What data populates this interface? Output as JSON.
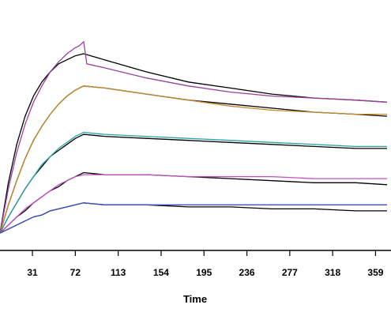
{
  "chart_data": {
    "type": "line",
    "title": "",
    "xlabel": "Time",
    "ylabel": "",
    "x_ticks": [
      31,
      72,
      113,
      154,
      195,
      236,
      277,
      318,
      359
    ],
    "xlim": [
      0,
      370
    ],
    "ylim": [
      0,
      100
    ],
    "grid": false,
    "legend": "none",
    "association_end_x": 80,
    "series": [
      {
        "color": "#9b3f9f",
        "fit_color": "#000000",
        "points": [
          [
            0,
            0
          ],
          [
            8,
            22
          ],
          [
            16,
            40
          ],
          [
            24,
            54
          ],
          [
            32,
            65
          ],
          [
            40,
            73
          ],
          [
            48,
            80
          ],
          [
            56,
            85
          ],
          [
            64,
            89
          ],
          [
            72,
            92
          ],
          [
            76,
            93
          ],
          [
            80,
            95
          ],
          [
            83,
            84
          ],
          [
            100,
            82
          ],
          [
            140,
            77
          ],
          [
            180,
            73
          ],
          [
            220,
            70
          ],
          [
            260,
            68
          ],
          [
            300,
            67
          ],
          [
            340,
            66
          ],
          [
            370,
            65
          ]
        ],
        "fit": [
          [
            0,
            0
          ],
          [
            8,
            25
          ],
          [
            16,
            44
          ],
          [
            24,
            58
          ],
          [
            32,
            68
          ],
          [
            40,
            75
          ],
          [
            48,
            80
          ],
          [
            56,
            84
          ],
          [
            64,
            86
          ],
          [
            72,
            88
          ],
          [
            80,
            89
          ],
          [
            100,
            86
          ],
          [
            140,
            80
          ],
          [
            180,
            75
          ],
          [
            220,
            72
          ],
          [
            260,
            69
          ],
          [
            300,
            67
          ],
          [
            340,
            66
          ],
          [
            370,
            65
          ]
        ]
      },
      {
        "color": "#c48a2a",
        "fit_color": "#000000",
        "points": [
          [
            0,
            0
          ],
          [
            8,
            14
          ],
          [
            16,
            26
          ],
          [
            24,
            37
          ],
          [
            32,
            46
          ],
          [
            40,
            53
          ],
          [
            48,
            59
          ],
          [
            56,
            64
          ],
          [
            64,
            68
          ],
          [
            72,
            71
          ],
          [
            80,
            73
          ],
          [
            100,
            72
          ],
          [
            140,
            69
          ],
          [
            180,
            66
          ],
          [
            220,
            63
          ],
          [
            260,
            61
          ],
          [
            300,
            60
          ],
          [
            340,
            59
          ],
          [
            370,
            59
          ]
        ],
        "fit": [
          [
            0,
            0
          ],
          [
            8,
            14
          ],
          [
            16,
            26
          ],
          [
            24,
            37
          ],
          [
            32,
            46
          ],
          [
            40,
            53
          ],
          [
            48,
            59
          ],
          [
            56,
            64
          ],
          [
            64,
            68
          ],
          [
            72,
            71
          ],
          [
            80,
            73
          ],
          [
            100,
            72
          ],
          [
            140,
            69
          ],
          [
            180,
            66
          ],
          [
            220,
            64
          ],
          [
            260,
            62
          ],
          [
            300,
            60
          ],
          [
            340,
            59
          ],
          [
            370,
            58
          ]
        ]
      },
      {
        "color": "#2aa3a8",
        "fit_color": "#000000",
        "points": [
          [
            0,
            0
          ],
          [
            8,
            8
          ],
          [
            16,
            15
          ],
          [
            24,
            22
          ],
          [
            32,
            28
          ],
          [
            40,
            34
          ],
          [
            48,
            38
          ],
          [
            56,
            42
          ],
          [
            64,
            45
          ],
          [
            72,
            48
          ],
          [
            80,
            50
          ],
          [
            100,
            49
          ],
          [
            140,
            48
          ],
          [
            180,
            47
          ],
          [
            220,
            46
          ],
          [
            260,
            45
          ],
          [
            300,
            44
          ],
          [
            340,
            43
          ],
          [
            370,
            43
          ]
        ],
        "fit": [
          [
            0,
            0
          ],
          [
            8,
            8
          ],
          [
            16,
            15
          ],
          [
            24,
            22
          ],
          [
            32,
            28
          ],
          [
            40,
            33
          ],
          [
            48,
            38
          ],
          [
            56,
            41
          ],
          [
            64,
            44
          ],
          [
            72,
            47
          ],
          [
            80,
            49
          ],
          [
            100,
            48
          ],
          [
            140,
            47
          ],
          [
            180,
            46
          ],
          [
            220,
            45
          ],
          [
            260,
            44
          ],
          [
            300,
            43
          ],
          [
            340,
            42
          ],
          [
            370,
            42
          ]
        ]
      },
      {
        "color": "#c24fc5",
        "fit_color": "#000000",
        "points": [
          [
            0,
            0
          ],
          [
            8,
            4
          ],
          [
            16,
            8
          ],
          [
            24,
            12
          ],
          [
            32,
            15
          ],
          [
            40,
            18
          ],
          [
            48,
            21
          ],
          [
            56,
            24
          ],
          [
            64,
            26
          ],
          [
            72,
            28
          ],
          [
            80,
            29
          ],
          [
            100,
            29
          ],
          [
            140,
            29
          ],
          [
            180,
            28
          ],
          [
            220,
            28
          ],
          [
            260,
            28
          ],
          [
            300,
            27
          ],
          [
            340,
            27
          ],
          [
            370,
            27
          ]
        ],
        "fit": [
          [
            0,
            0
          ],
          [
            8,
            4
          ],
          [
            16,
            8
          ],
          [
            24,
            11
          ],
          [
            32,
            15
          ],
          [
            40,
            18
          ],
          [
            48,
            21
          ],
          [
            56,
            23
          ],
          [
            64,
            26
          ],
          [
            72,
            28
          ],
          [
            80,
            30
          ],
          [
            100,
            29
          ],
          [
            140,
            29
          ],
          [
            180,
            28
          ],
          [
            220,
            27
          ],
          [
            260,
            26
          ],
          [
            300,
            25
          ],
          [
            340,
            25
          ],
          [
            370,
            24
          ]
        ]
      },
      {
        "color": "#3f4fc0",
        "fit_color": "#000000",
        "points": [
          [
            0,
            0
          ],
          [
            8,
            2
          ],
          [
            16,
            4
          ],
          [
            24,
            6
          ],
          [
            32,
            8
          ],
          [
            40,
            9
          ],
          [
            48,
            11
          ],
          [
            56,
            12
          ],
          [
            64,
            13
          ],
          [
            72,
            14
          ],
          [
            80,
            15
          ],
          [
            100,
            14
          ],
          [
            140,
            14
          ],
          [
            180,
            14
          ],
          [
            220,
            14
          ],
          [
            260,
            14
          ],
          [
            300,
            14
          ],
          [
            340,
            14
          ],
          [
            370,
            14
          ]
        ],
        "fit": [
          [
            0,
            0
          ],
          [
            8,
            2
          ],
          [
            16,
            4
          ],
          [
            24,
            6
          ],
          [
            32,
            8
          ],
          [
            40,
            9
          ],
          [
            48,
            11
          ],
          [
            56,
            12
          ],
          [
            64,
            13
          ],
          [
            72,
            14
          ],
          [
            80,
            15
          ],
          [
            100,
            14
          ],
          [
            140,
            14
          ],
          [
            180,
            13
          ],
          [
            220,
            13
          ],
          [
            260,
            12
          ],
          [
            300,
            12
          ],
          [
            340,
            11
          ],
          [
            370,
            11
          ]
        ]
      }
    ]
  }
}
